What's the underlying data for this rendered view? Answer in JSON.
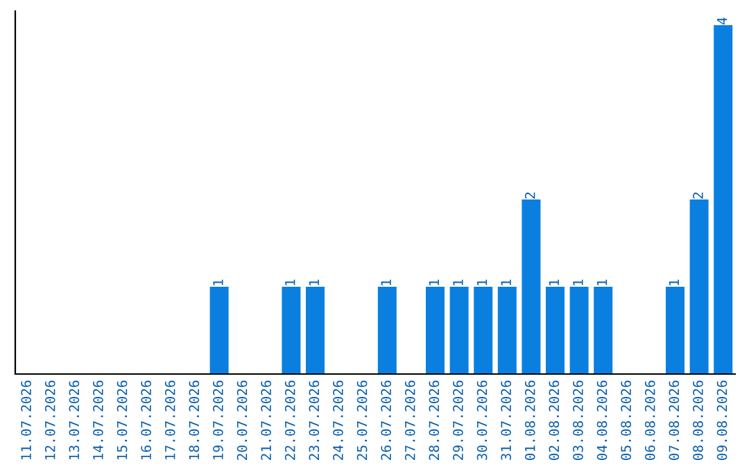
{
  "chart_data": {
    "type": "bar",
    "categories": [
      "11.07.2026",
      "12.07.2026",
      "13.07.2026",
      "14.07.2026",
      "15.07.2026",
      "16.07.2026",
      "17.07.2026",
      "18.07.2026",
      "19.07.2026",
      "20.07.2026",
      "21.07.2026",
      "22.07.2026",
      "23.07.2026",
      "24.07.2026",
      "25.07.2026",
      "26.07.2026",
      "27.07.2026",
      "28.07.2026",
      "29.07.2026",
      "30.07.2026",
      "31.07.2026",
      "01.08.2026",
      "02.08.2026",
      "03.08.2026",
      "04.08.2026",
      "05.08.2026",
      "06.08.2026",
      "07.08.2026",
      "08.08.2026",
      "09.08.2026"
    ],
    "values": [
      0,
      0,
      0,
      0,
      0,
      0,
      0,
      0,
      1,
      0,
      0,
      1,
      1,
      0,
      0,
      1,
      0,
      1,
      1,
      1,
      1,
      2,
      1,
      1,
      1,
      0,
      0,
      1,
      2,
      4
    ],
    "value_labels": [
      null,
      null,
      null,
      null,
      null,
      null,
      null,
      null,
      "1",
      null,
      null,
      "1",
      "1",
      null,
      null,
      "1",
      null,
      "1",
      "1",
      "1",
      "1",
      "2",
      "1",
      "1",
      "1",
      null,
      null,
      "1",
      "2",
      "4"
    ],
    "color": "#0a7fe0",
    "tick_labels": "x",
    "grid": false,
    "legend": false
  }
}
